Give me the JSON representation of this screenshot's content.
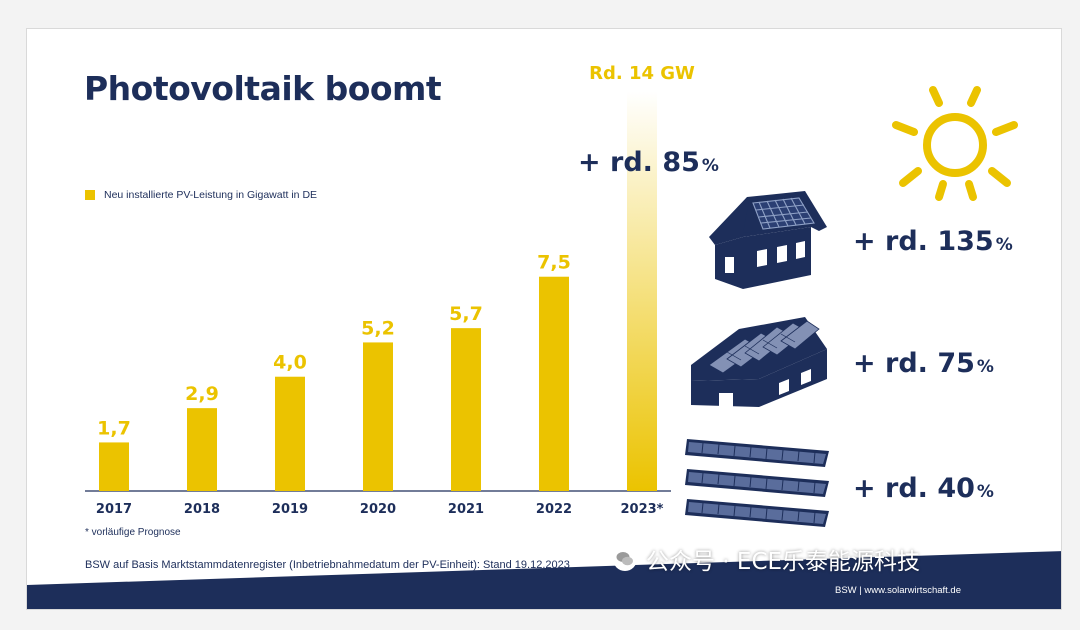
{
  "slide": {
    "title": "Photovoltaik boomt",
    "legend_label": "Neu installierte PV-Leistung in Gigawatt in DE",
    "footnote": "* vorläufige Prognose",
    "source": "BSW auf Basis Marktstammdatenregister (Inbetriebnahmedatum der PV-Einheit): Stand 19.12.2023",
    "website": "BSW | www.solarwirtschaft.de",
    "watermark": "公众号 · ECE乐泰能源科技"
  },
  "growth": {
    "total": {
      "value": "+ rd. 85",
      "unit": "%"
    },
    "rooftop_residential": {
      "value": "+ rd. 135",
      "unit": "%"
    },
    "rooftop_commercial": {
      "value": "+ rd. 75",
      "unit": "%"
    },
    "ground_mounted": {
      "value": "+ rd. 40",
      "unit": "%"
    }
  },
  "icons": [
    "sun-icon",
    "house-solar-roof-icon",
    "commercial-building-solar-icon",
    "ground-mounted-solar-panels-icon",
    "wechat-icon"
  ],
  "colors": {
    "bar": "#ebc300",
    "navy": "#1d2e5a",
    "sun": "#ebc300"
  },
  "chart_data": {
    "type": "bar",
    "title": "Photovoltaik boomt",
    "categories": [
      "2017",
      "2018",
      "2019",
      "2020",
      "2021",
      "2022",
      "2023*"
    ],
    "series": [
      {
        "name": "Neu installierte PV-Leistung in Gigawatt in DE",
        "values": [
          1.7,
          2.9,
          4.0,
          5.2,
          5.7,
          7.5,
          14
        ]
      }
    ],
    "data_labels": [
      "1,7",
      "2,9",
      "4,0",
      "5,2",
      "5,7",
      "7,5",
      "Rd. 14 GW"
    ],
    "xlabel": "",
    "ylabel": "",
    "ylim": [
      0,
      14
    ],
    "grid": false,
    "legend_position": "top-left",
    "annotations": [
      "+ rd. 85%"
    ]
  }
}
